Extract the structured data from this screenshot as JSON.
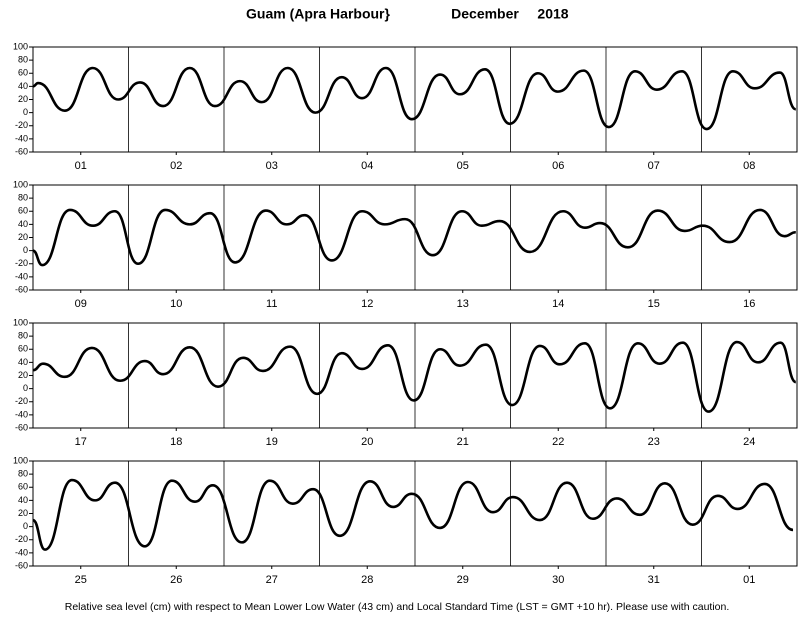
{
  "title": "Guam (Apra Harbour}",
  "month": "December",
  "year": "2018",
  "note": "Relative sea level (cm) with respect to Mean Lower Low Water (43 cm) and Local Standard Time (LST = GMT +10 hr). Please use with caution.",
  "chart_data": [
    {
      "type": "line",
      "color": "#000000",
      "xlim": [
        0,
        192
      ],
      "ylim": [
        -60,
        100
      ],
      "yticks": [
        100,
        80,
        60,
        40,
        20,
        0,
        -20,
        -40,
        -60
      ],
      "categories": [
        "01",
        "02",
        "03",
        "04",
        "05",
        "06",
        "07",
        "08"
      ],
      "x": [
        0,
        1.3,
        8,
        15,
        21.4,
        26.9,
        32.7,
        39.4,
        45.7,
        52,
        57.5,
        64,
        71,
        77.6,
        82.7,
        88.7,
        95.2,
        102.3,
        107.3,
        113.6,
        119.8,
        126.9,
        131.9,
        138.4,
        144.7,
        151.3,
        156.8,
        163.1,
        169.3,
        175.9,
        181.4,
        187.7,
        191.7
      ],
      "values": [
        40,
        45,
        3,
        68,
        20,
        46,
        10,
        68,
        10,
        48,
        16,
        68,
        0,
        54,
        22,
        68,
        -10,
        58,
        28,
        66,
        -17,
        60,
        32,
        64,
        -22,
        63,
        35,
        63,
        -25,
        63,
        37,
        61,
        5
      ]
    },
    {
      "type": "line",
      "color": "#000000",
      "xlim": [
        0,
        192
      ],
      "ylim": [
        -60,
        100
      ],
      "yticks": [
        100,
        80,
        60,
        40,
        20,
        0,
        -20,
        -40,
        -60
      ],
      "categories": [
        "09",
        "10",
        "11",
        "12",
        "13",
        "14",
        "15",
        "16"
      ],
      "x": [
        0,
        2.3,
        9.3,
        15.1,
        20.6,
        26.4,
        33.2,
        39.4,
        44.5,
        50.8,
        58.5,
        63.8,
        68.3,
        75.1,
        82.7,
        88.4,
        93.5,
        100.5,
        107.8,
        112.8,
        117.3,
        124.9,
        133.2,
        138.7,
        142.5,
        149.5,
        157,
        163.8,
        168.3,
        175.1,
        182.7,
        188.9,
        191.7
      ],
      "values": [
        0,
        -22,
        62,
        38,
        60,
        -20,
        62,
        40,
        57,
        -18,
        61,
        40,
        54,
        -15,
        60,
        40,
        48,
        -7,
        60,
        38,
        45,
        -2,
        60,
        35,
        42,
        5,
        61,
        30,
        38,
        13,
        62,
        22,
        28
      ]
    },
    {
      "type": "line",
      "color": "#000000",
      "xlim": [
        0,
        192
      ],
      "ylim": [
        -60,
        100
      ],
      "yticks": [
        100,
        80,
        60,
        40,
        20,
        0,
        -20,
        -40,
        -60
      ],
      "categories": [
        "17",
        "18",
        "19",
        "20",
        "21",
        "22",
        "23",
        "24"
      ],
      "x": [
        0,
        2.5,
        8,
        14.8,
        21.9,
        28.1,
        32.7,
        39.4,
        46.5,
        52.8,
        57.8,
        64.6,
        71.4,
        77.6,
        82.7,
        89.2,
        95.7,
        102.3,
        107.3,
        113.8,
        120.4,
        127.4,
        132.4,
        138.7,
        145,
        152,
        157.5,
        163.3,
        169.8,
        176.9,
        182.2,
        187.9,
        191.7
      ],
      "values": [
        28,
        38,
        18,
        62,
        12,
        42,
        22,
        63,
        3,
        47,
        27,
        64,
        -8,
        54,
        30,
        66,
        -18,
        60,
        35,
        67,
        -25,
        65,
        37,
        69,
        -30,
        69,
        38,
        70,
        -35,
        71,
        40,
        70,
        10
      ]
    },
    {
      "type": "line",
      "color": "#000000",
      "xlim": [
        0,
        192
      ],
      "ylim": [
        -60,
        100
      ],
      "yticks": [
        100,
        80,
        60,
        40,
        20,
        0,
        -20,
        -40,
        -60
      ],
      "categories": [
        "25",
        "26",
        "27",
        "28",
        "29",
        "30",
        "31",
        "01"
      ],
      "x": [
        0,
        3,
        9.8,
        15.6,
        20.6,
        28.1,
        34.9,
        40.7,
        45.2,
        52.5,
        59.5,
        65.3,
        70.4,
        77.1,
        84.7,
        90.5,
        95.2,
        102.3,
        109.3,
        115.6,
        120.6,
        127.4,
        134.2,
        140.7,
        146.7,
        152.5,
        158.8,
        165.8,
        172.1,
        177.1,
        183.9,
        191
      ],
      "values": [
        10,
        -35,
        71,
        40,
        67,
        -30,
        70,
        38,
        63,
        -24,
        70,
        35,
        57,
        -14,
        69,
        30,
        50,
        -2,
        68,
        22,
        45,
        10,
        67,
        12,
        43,
        18,
        66,
        3,
        47,
        27,
        65,
        -5
      ]
    }
  ]
}
